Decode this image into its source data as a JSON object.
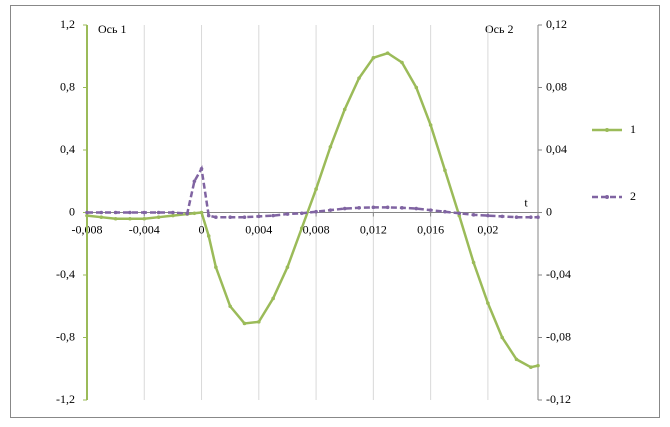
{
  "chart_data": {
    "type": "line",
    "y_label": "Ось 1",
    "y2_label": "Ось 2",
    "x_label": "t",
    "x": [
      -0.008,
      -0.007,
      -0.006,
      -0.005,
      -0.004,
      -0.003,
      -0.002,
      -0.001,
      -0.0005,
      0,
      0.0005,
      0.001,
      0.002,
      0.003,
      0.004,
      0.005,
      0.006,
      0.007,
      0.008,
      0.009,
      0.01,
      0.011,
      0.012,
      0.013,
      0.014,
      0.015,
      0.016,
      0.017,
      0.018,
      0.019,
      0.02,
      0.021,
      0.022,
      0.023,
      0.0235
    ],
    "series": [
      {
        "name": "1",
        "color": "#9bbb59",
        "line_style": "solid",
        "axis": "y",
        "values": [
          -0.02,
          -0.03,
          -0.04,
          -0.04,
          -0.04,
          -0.03,
          -0.02,
          -0.01,
          -0.005,
          0,
          -0.15,
          -0.35,
          -0.6,
          -0.71,
          -0.7,
          -0.55,
          -0.35,
          -0.1,
          0.15,
          0.42,
          0.66,
          0.86,
          0.99,
          1.02,
          0.96,
          0.8,
          0.56,
          0.27,
          -0.02,
          -0.32,
          -0.58,
          -0.8,
          -0.94,
          -0.99,
          -0.98
        ]
      },
      {
        "name": "2",
        "color": "#8064a2",
        "line_style": "dashed",
        "axis": "y2",
        "values": [
          0,
          0,
          0,
          0,
          0,
          0,
          0,
          -0.0007,
          0.02,
          0.028,
          -0.002,
          -0.003,
          -0.003,
          -0.003,
          -0.0025,
          -0.002,
          -0.001,
          -0.0005,
          0.0005,
          0.0015,
          0.0025,
          0.003,
          0.0033,
          0.0033,
          0.003,
          0.0025,
          0.0015,
          0.0005,
          -0.0005,
          -0.0015,
          -0.002,
          -0.0025,
          -0.003,
          -0.003,
          -0.003
        ]
      }
    ],
    "xlim": [
      -0.008,
      0.0235
    ],
    "xticks": [
      {
        "value": -0.008,
        "label": "-0,008"
      },
      {
        "value": -0.004,
        "label": "-0,004"
      },
      0,
      {
        "value": 0.004,
        "label": "0,004"
      },
      {
        "value": 0.008,
        "label": "0,008"
      },
      {
        "value": 0.012,
        "label": "0,012"
      },
      {
        "value": 0.016,
        "label": "0,016"
      },
      {
        "value": 0.02,
        "label": "0,02"
      }
    ],
    "ylim": [
      -1.2,
      1.2
    ],
    "yticks": [
      {
        "value": -1.2,
        "label": "-1,2"
      },
      {
        "value": -0.8,
        "label": "-0,8"
      },
      {
        "value": -0.4,
        "label": "-0,4"
      },
      0,
      {
        "value": 0.4,
        "label": "0,4"
      },
      {
        "value": 0.8,
        "label": "0,8"
      },
      {
        "value": 1.2,
        "label": "1,2"
      }
    ],
    "y2lim": [
      -0.12,
      0.12
    ],
    "y2ticks": [
      {
        "value": -0.12,
        "label": "-0,12"
      },
      {
        "value": -0.08,
        "label": "-0,08"
      },
      {
        "value": -0.04,
        "label": "-0,04"
      },
      0,
      {
        "value": 0.04,
        "label": "0,04"
      },
      {
        "value": 0.08,
        "label": "0,08"
      },
      {
        "value": 0.12,
        "label": "0,12"
      }
    ],
    "grid": "x",
    "legend": "right"
  }
}
